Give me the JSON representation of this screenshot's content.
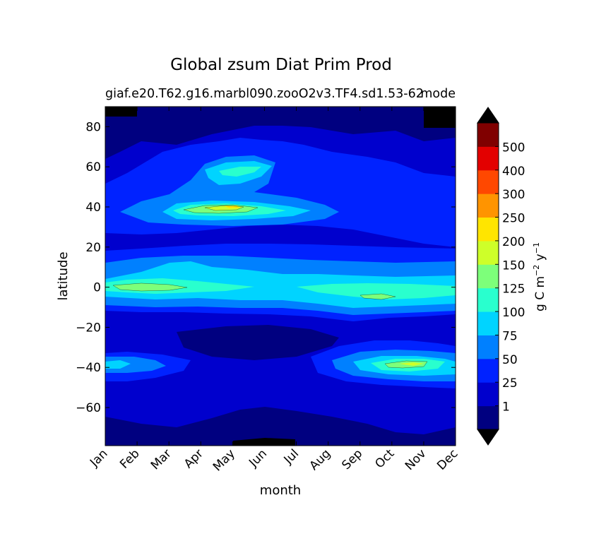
{
  "chart_data": {
    "type": "contourf",
    "title": "Global zsum Diat Prim Prod",
    "subtitle_left": "giaf.e20.T62.g16.marbl090.zooO2v3.TF4.sd1.53-62",
    "subtitle_right": "mode",
    "xlabel": "month",
    "ylabel": "latitude",
    "x_ticks": [
      "Jan",
      "Feb",
      "Mar",
      "Apr",
      "May",
      "Jun",
      "Jul",
      "Aug",
      "Sep",
      "Oct",
      "Nov",
      "Dec"
    ],
    "x_values": [
      1,
      2,
      3,
      4,
      5,
      6,
      7,
      8,
      9,
      10,
      11,
      12
    ],
    "y_ticks": [
      80,
      60,
      40,
      20,
      0,
      -20,
      -40,
      -60
    ],
    "y_tick_labels": [
      "80",
      "60",
      "40",
      "20",
      "0",
      "−20",
      "−40",
      "−60"
    ],
    "xlim": [
      1,
      12
    ],
    "ylim": [
      -79,
      90
    ],
    "levels": [
      0,
      1,
      25,
      50,
      75,
      100,
      125,
      150,
      200,
      250,
      300,
      400,
      500,
      600
    ],
    "colorbar": {
      "label_text": "g C m",
      "label_exp1": "−2",
      "label_mid": " y",
      "label_exp2": "−1",
      "tick_labels": [
        "1",
        "25",
        "50",
        "75",
        "100",
        "125",
        "150",
        "200",
        "250",
        "300",
        "400",
        "500"
      ],
      "colors": [
        "#000080",
        "#0000cd",
        "#0022ff",
        "#0080ff",
        "#00d4ff",
        "#29ffce",
        "#7dff7a",
        "#ceff29",
        "#ffe500",
        "#ff9400",
        "#ff4800",
        "#e30000",
        "#800000"
      ],
      "extend": "both",
      "under_color": "#000000",
      "over_color": "#000000"
    },
    "field_summary": {
      "band_equator": [
        {
          "month": 1,
          "lat": 0,
          "value": 120
        },
        {
          "month": 3,
          "lat": 0,
          "value": 140
        },
        {
          "month": 9,
          "lat": -1,
          "value": 115
        },
        {
          "month": 10,
          "lat": -5,
          "value": 130
        }
      ],
      "band_40N": [
        {
          "month": 5,
          "lat": 40,
          "value": 210
        },
        {
          "month": 4,
          "lat": 39,
          "value": 140
        }
      ],
      "band_60N": [
        {
          "month": 5,
          "lat": 60,
          "value": 110
        }
      ],
      "band_40S": [
        {
          "month": 11,
          "lat": -39,
          "value": 170
        },
        {
          "month": 10,
          "lat": -40,
          "value": 120
        }
      ]
    }
  }
}
